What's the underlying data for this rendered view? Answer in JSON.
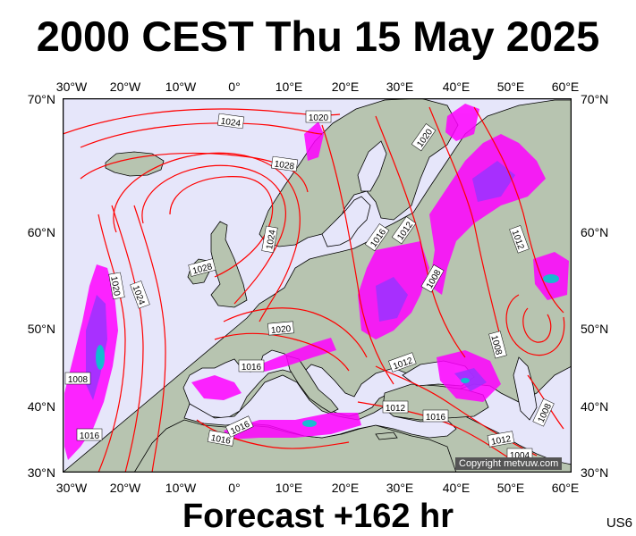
{
  "header": {
    "title": "2000 CEST Thu 15 May 2025"
  },
  "footer": {
    "forecast": "Forecast +162 hr",
    "model": "US6"
  },
  "map": {
    "copyright": "Copyright metvuw.com",
    "lon_labels": [
      "30°W",
      "20°W",
      "10°W",
      "0°",
      "10°E",
      "20°E",
      "30°E",
      "40°E",
      "50°E",
      "60°E"
    ],
    "lat_labels": [
      "70°N",
      "60°N",
      "50°N",
      "40°N",
      "30°N"
    ],
    "isobar_labels": [
      "1024",
      "1020",
      "1028",
      "1020",
      "1024",
      "1028",
      "1020",
      "1024",
      "1016",
      "1012",
      "1012",
      "1008",
      "1020",
      "1016",
      "1012",
      "1008",
      "1008",
      "1016",
      "1012",
      "1016",
      "1016",
      "1016",
      "1012",
      "1008",
      "1004"
    ],
    "colors": {
      "ocean": "#e6e6fa",
      "land": "#b7c4b0",
      "isobar": "#ff0000",
      "precip_light": "#ff00ff",
      "precip_mid": "#9933ff",
      "precip_heavy": "#00cccc"
    }
  }
}
